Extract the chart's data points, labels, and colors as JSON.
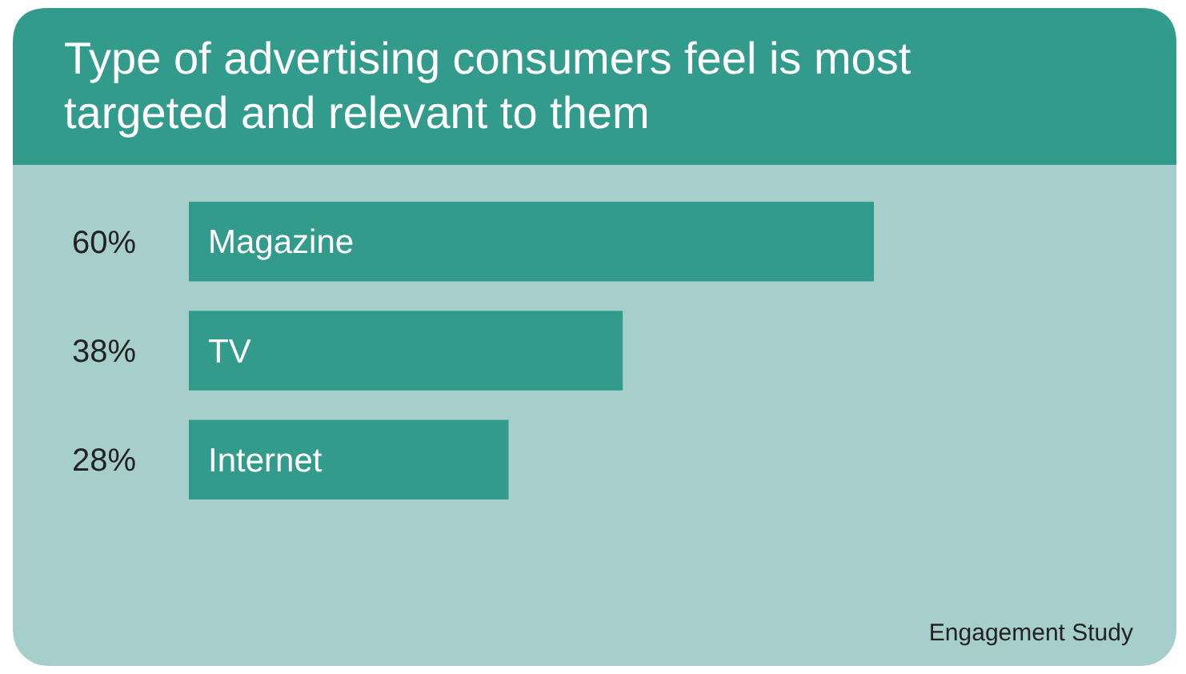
{
  "chart_data": {
    "type": "bar",
    "orientation": "horizontal",
    "title": "Type of advertising consumers feel is most targeted and relevant to them",
    "categories": [
      "Magazine",
      "TV",
      "Internet"
    ],
    "values": [
      60,
      38,
      28
    ],
    "value_labels": [
      "60%",
      "38%",
      "28%"
    ],
    "color": "#339b8b",
    "annotations": [
      "Engagement Study"
    ]
  }
}
